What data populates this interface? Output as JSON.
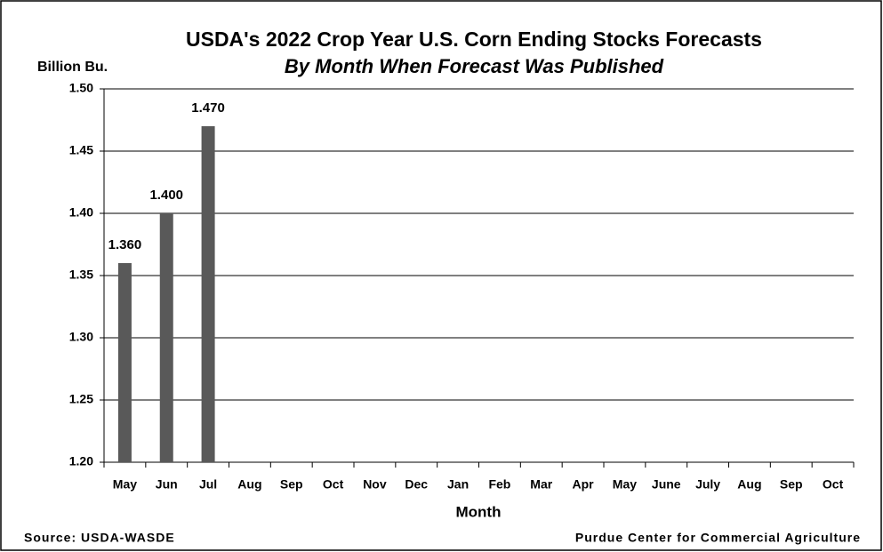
{
  "chart_data": {
    "type": "bar",
    "title": "USDA's 2022 Crop Year U.S. Corn Ending Stocks Forecasts",
    "subtitle": "By Month When Forecast Was Published",
    "y_label": "Billion Bu.",
    "x_label": "Month",
    "source": "Source: USDA-WASDE",
    "credit": "Purdue Center for Commercial Agriculture",
    "categories": [
      "May",
      "Jun",
      "Jul",
      "Aug",
      "Sep",
      "Oct",
      "Nov",
      "Dec",
      "Jan",
      "Feb",
      "Mar",
      "Apr",
      "May",
      "June",
      "July",
      "Aug",
      "Sep",
      "Oct"
    ],
    "values": [
      1.36,
      1.4,
      1.47,
      null,
      null,
      null,
      null,
      null,
      null,
      null,
      null,
      null,
      null,
      null,
      null,
      null,
      null,
      null
    ],
    "value_labels": [
      "1.360",
      "1.400",
      "1.470",
      null,
      null,
      null,
      null,
      null,
      null,
      null,
      null,
      null,
      null,
      null,
      null,
      null,
      null,
      null
    ],
    "color": "#595959",
    "ylim": [
      1.2,
      1.5
    ],
    "yticks": [
      {
        "value": 1.2,
        "label": "1.20"
      },
      {
        "value": 1.25,
        "label": "1.25"
      },
      {
        "value": 1.3,
        "label": "1.30"
      },
      {
        "value": 1.35,
        "label": "1.35"
      },
      {
        "value": 1.4,
        "label": "1.40"
      },
      {
        "value": 1.45,
        "label": "1.45"
      },
      {
        "value": 1.5,
        "label": "1.50"
      }
    ],
    "grid": true
  }
}
